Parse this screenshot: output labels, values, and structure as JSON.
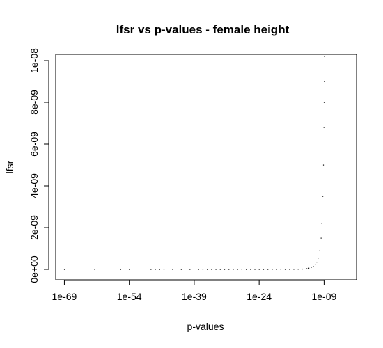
{
  "chart_data": {
    "type": "scatter",
    "title": "lfsr vs p-values - female height",
    "xlabel": "p-values",
    "ylabel": "lfsr",
    "x_scale": "log10",
    "xlim_log10": [
      -71,
      -1.5
    ],
    "ylim": [
      -5e-10,
      1.03e-08
    ],
    "x_ticks": [
      "1e-69",
      "1e-54",
      "1e-39",
      "1e-24",
      "1e-09"
    ],
    "y_ticks": [
      "0e+00",
      "2e-09",
      "4e-09",
      "6e-09",
      "8e-09",
      "1e-08"
    ],
    "grid": false,
    "legend": "none",
    "point_color": "#000000",
    "points": [
      [
        1e-69,
        2e-13
      ],
      [
        1e-62,
        2e-13
      ],
      [
        1e-56,
        2e-13
      ],
      [
        1e-54,
        2e-13
      ],
      [
        1e-49,
        2e-13
      ],
      [
        1e-48,
        2e-13
      ],
      [
        1e-47,
        2e-13
      ],
      [
        1e-46,
        2e-13
      ],
      [
        1e-44,
        2e-13
      ],
      [
        1e-42,
        3e-13
      ],
      [
        1e-40,
        3e-13
      ],
      [
        1e-38,
        3e-13
      ],
      [
        1e-37,
        3e-13
      ],
      [
        1e-36,
        3e-13
      ],
      [
        1e-35,
        3e-13
      ],
      [
        1e-34,
        3e-13
      ],
      [
        1e-33,
        3e-13
      ],
      [
        1e-32,
        3e-13
      ],
      [
        1e-31,
        4e-13
      ],
      [
        1e-30,
        4e-13
      ],
      [
        1e-29,
        4e-13
      ],
      [
        1e-28,
        4e-13
      ],
      [
        1e-27,
        5e-13
      ],
      [
        1e-26,
        5e-13
      ],
      [
        1e-25,
        5e-13
      ],
      [
        1e-24,
        6e-13
      ],
      [
        1e-23,
        7e-13
      ],
      [
        1e-22,
        8e-13
      ],
      [
        1e-21,
        1e-12
      ],
      [
        1e-20,
        1.3e-12
      ],
      [
        1e-19,
        1.8e-12
      ],
      [
        1e-18,
        2.6e-12
      ],
      [
        1e-17,
        4e-12
      ],
      [
        1e-16,
        6e-12
      ],
      [
        1e-15,
        1e-11
      ],
      [
        1e-14,
        1.8e-11
      ],
      [
        1e-13,
        3.5e-11
      ],
      [
        3e-13,
        6e-11
      ],
      [
        1e-12,
        9e-11
      ],
      [
        3e-12,
        1.5e-10
      ],
      [
        1e-11,
        2.5e-10
      ],
      [
        2e-11,
        3.5e-10
      ],
      [
        5e-11,
        5.5e-10
      ],
      [
        1e-10,
        9e-10
      ],
      [
        2e-10,
        1.5e-09
      ],
      [
        3e-10,
        2.2e-09
      ],
      [
        5e-10,
        3.5e-09
      ],
      [
        7e-10,
        5e-09
      ],
      [
        9e-10,
        6.8e-09
      ],
      [
        1e-09,
        8e-09
      ],
      [
        1.1e-09,
        9e-09
      ],
      [
        1.2e-09,
        1.02e-08
      ]
    ]
  }
}
